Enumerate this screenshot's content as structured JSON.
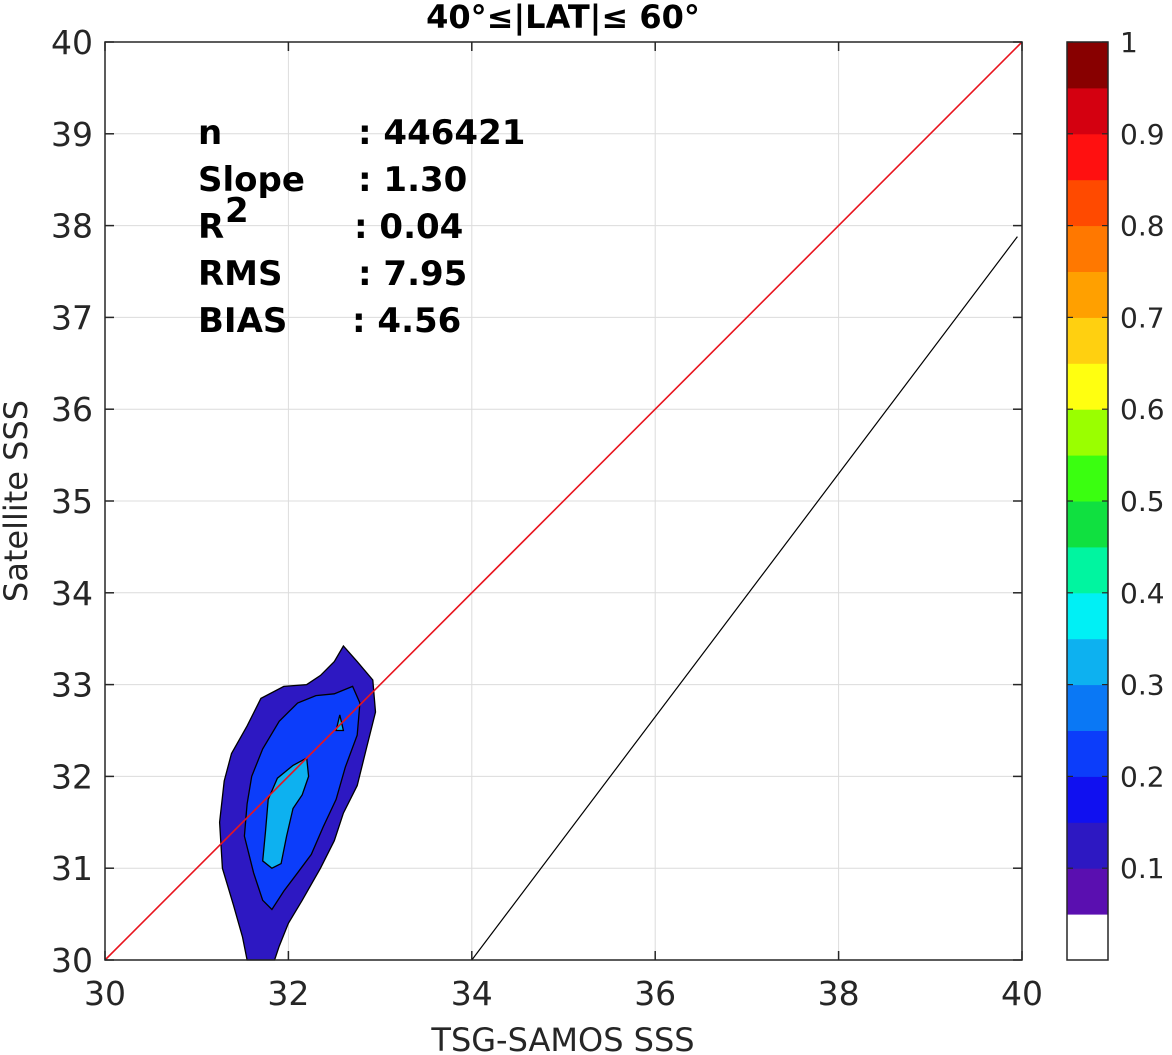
{
  "chart_data": {
    "type": "contour-scatter",
    "title": "40°≤|LAT|≤ 60°",
    "xlabel": "TSG-SAMOS SSS",
    "ylabel": "Satellite SSS",
    "xlim": [
      30,
      40
    ],
    "ylim": [
      30,
      40
    ],
    "xticks": [
      "30",
      "32",
      "34",
      "36",
      "38",
      "40"
    ],
    "yticks": [
      "30",
      "31",
      "32",
      "33",
      "34",
      "35",
      "36",
      "37",
      "38",
      "39",
      "40"
    ],
    "grid": true,
    "stats": [
      {
        "label": "n",
        "value": ": 446421"
      },
      {
        "label": "Slope",
        "value": ": 1.30"
      },
      {
        "label": "R",
        "sup": "2",
        "value": ": 0.04"
      },
      {
        "label": "RMS",
        "value": ": 7.95"
      },
      {
        "label": "BIAS",
        "value": ": 4.56"
      }
    ],
    "one_to_one_line": {
      "color": "#e8141e",
      "from": [
        30,
        30
      ],
      "to": [
        40,
        40
      ]
    },
    "regression_line": {
      "color": "#000000",
      "from": [
        34.0,
        30.0
      ],
      "to": [
        39.95,
        37.88
      ]
    },
    "density_contours": [
      {
        "level": 0.05,
        "color": "#2d18c2",
        "points": [
          [
            31.55,
            30.0
          ],
          [
            31.5,
            30.25
          ],
          [
            31.4,
            30.6
          ],
          [
            31.28,
            31.0
          ],
          [
            31.25,
            31.5
          ],
          [
            31.3,
            31.95
          ],
          [
            31.38,
            32.25
          ],
          [
            31.55,
            32.55
          ],
          [
            31.7,
            32.85
          ],
          [
            31.95,
            32.98
          ],
          [
            32.2,
            33.0
          ],
          [
            32.35,
            33.1
          ],
          [
            32.5,
            33.25
          ],
          [
            32.6,
            33.42
          ],
          [
            32.75,
            33.25
          ],
          [
            32.92,
            33.05
          ],
          [
            32.95,
            32.7
          ],
          [
            32.85,
            32.3
          ],
          [
            32.75,
            31.9
          ],
          [
            32.6,
            31.6
          ],
          [
            32.5,
            31.3
          ],
          [
            32.35,
            31.0
          ],
          [
            32.15,
            30.65
          ],
          [
            32.0,
            30.4
          ],
          [
            31.9,
            30.15
          ],
          [
            31.85,
            30.0
          ]
        ]
      },
      {
        "level": 0.2,
        "color": "#0c3dfa",
        "points": [
          [
            31.52,
            31.35
          ],
          [
            31.55,
            31.7
          ],
          [
            31.6,
            32.0
          ],
          [
            31.72,
            32.3
          ],
          [
            31.9,
            32.6
          ],
          [
            32.1,
            32.8
          ],
          [
            32.3,
            32.88
          ],
          [
            32.5,
            32.9
          ],
          [
            32.7,
            32.98
          ],
          [
            32.78,
            32.8
          ],
          [
            32.75,
            32.45
          ],
          [
            32.62,
            32.1
          ],
          [
            32.52,
            31.75
          ],
          [
            32.38,
            31.45
          ],
          [
            32.25,
            31.15
          ],
          [
            32.1,
            30.95
          ],
          [
            31.95,
            30.75
          ],
          [
            31.82,
            30.55
          ],
          [
            31.72,
            30.65
          ],
          [
            31.62,
            30.95
          ]
        ]
      },
      {
        "level": 0.3,
        "color": "#0db1f0",
        "points": [
          [
            31.72,
            31.08
          ],
          [
            31.75,
            31.4
          ],
          [
            31.78,
            31.75
          ],
          [
            31.88,
            31.98
          ],
          [
            32.05,
            32.12
          ],
          [
            32.2,
            32.2
          ],
          [
            32.22,
            32.0
          ],
          [
            32.15,
            31.8
          ],
          [
            32.05,
            31.65
          ],
          [
            31.98,
            31.35
          ],
          [
            31.92,
            31.05
          ],
          [
            31.82,
            31.0
          ]
        ]
      },
      {
        "level": 0.3,
        "color": "#0db1f0",
        "points": [
          [
            32.52,
            32.5
          ],
          [
            32.56,
            32.67
          ],
          [
            32.6,
            32.5
          ]
        ]
      }
    ],
    "colorbar": {
      "ticks": [
        "0.1",
        "0.2",
        "0.3",
        "0.4",
        "0.5",
        "0.6",
        "0.7",
        "0.8",
        "0.9",
        "1"
      ],
      "colors": [
        "#ffffff",
        "#5a0fb0",
        "#2d18c2",
        "#1010f0",
        "#0c3dfa",
        "#0a78f5",
        "#0db1f0",
        "#00f0f5",
        "#00f5a0",
        "#10e040",
        "#3aff10",
        "#9aff00",
        "#ffff10",
        "#ffd010",
        "#ffa000",
        "#ff7800",
        "#ff4a00",
        "#ff1010",
        "#d40010",
        "#880000"
      ]
    }
  }
}
